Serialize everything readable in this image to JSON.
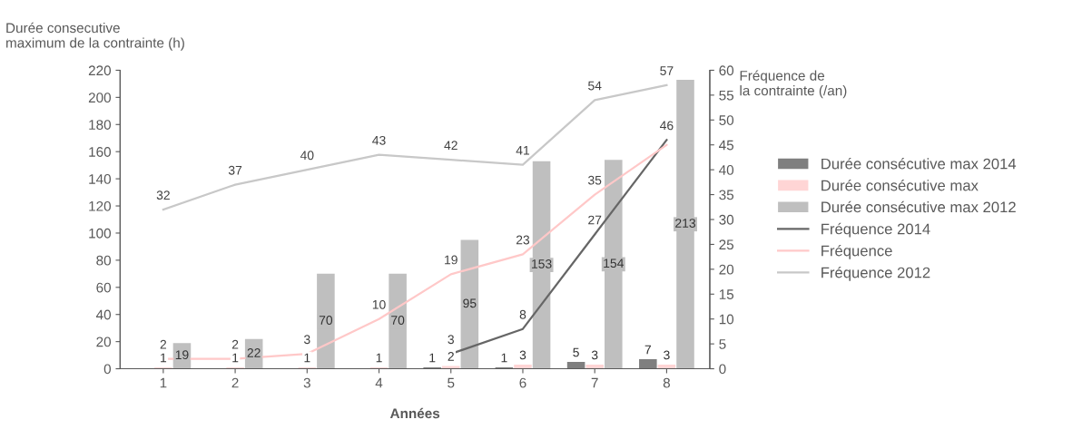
{
  "chart_data": {
    "type": "bar",
    "xlabel": "Années",
    "ylabel": "Durée consecutive\nmaximum de la contrainte (h)",
    "y2label": "Fréquence de\nla contrainte (/an)",
    "categories": [
      "1",
      "2",
      "3",
      "4",
      "5",
      "6",
      "7",
      "8"
    ],
    "series": [
      {
        "name": "Durée consécutive max 2014",
        "color": "#7f7f7f",
        "values": [
          null,
          null,
          null,
          null,
          1,
          1,
          5,
          7
        ]
      },
      {
        "name": "Durée consécutive max",
        "color": "#ffd5d5",
        "values": [
          1,
          1,
          1,
          1,
          2,
          3,
          3,
          3
        ]
      },
      {
        "name": "Durée consécutive max 2012",
        "color": "#bfbfbf",
        "values": [
          19,
          22,
          70,
          70,
          95,
          153,
          154,
          213
        ]
      },
      {
        "name": "Fréquence 2014",
        "type": "line",
        "axis": "y2",
        "color": "#666666",
        "values": [
          null,
          null,
          null,
          null,
          3,
          8,
          27,
          46
        ]
      },
      {
        "name": "Fréquence",
        "type": "line",
        "axis": "y2",
        "color": "#ffc8c8",
        "values": [
          2,
          2,
          3,
          10,
          19,
          23,
          35,
          45
        ],
        "value_labels": [
          "2",
          "2",
          "3",
          "10",
          "19",
          "23",
          "35",
          null
        ]
      },
      {
        "name": "Fréquence 2012",
        "type": "line",
        "axis": "y2",
        "color": "#c8c8c8",
        "values": [
          32,
          37,
          40,
          43,
          42,
          41,
          54,
          57
        ]
      }
    ],
    "ylim": [
      0,
      220
    ],
    "yticks": [
      0,
      20,
      40,
      60,
      80,
      100,
      120,
      140,
      160,
      180,
      200,
      220
    ],
    "y2lim": [
      0,
      60
    ],
    "y2ticks": [
      0,
      5,
      10,
      15,
      20,
      25,
      30,
      35,
      40,
      45,
      50,
      55,
      60
    ],
    "data_labels": true,
    "grid": false,
    "legend": "right"
  }
}
